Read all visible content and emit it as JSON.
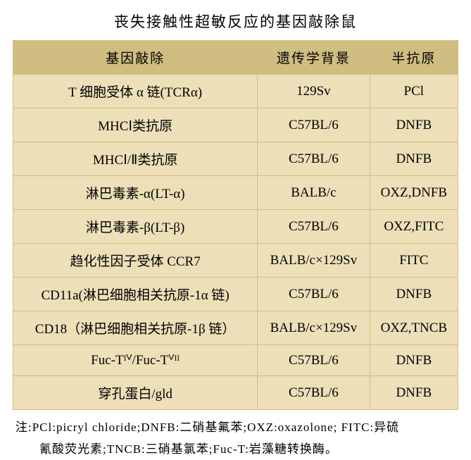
{
  "title": "丧失接触性超敏反应的基因敲除鼠",
  "table": {
    "headers": [
      "基因敲除",
      "遗传学背景",
      "半抗原"
    ],
    "rows": [
      [
        "T 细胞受体 α 链(TCRα)",
        "129Sv",
        "PCl"
      ],
      [
        "MHCⅠ类抗原",
        "C57BL/6",
        "DNFB"
      ],
      [
        "MHCⅠ/Ⅱ类抗原",
        "C57BL/6",
        "DNFB"
      ],
      [
        "淋巴毒素-α(LT-α)",
        "BALB/c",
        "OXZ,DNFB"
      ],
      [
        "淋巴毒素-β(LT-β)",
        "C57BL/6",
        "OXZ,FITC"
      ],
      [
        "趋化性因子受体 CCR7",
        "BALB/c×129Sv",
        "FITC"
      ],
      [
        "CD11a(淋巴细胞相关抗原-1α 链)",
        "C57BL/6",
        "DNFB"
      ],
      [
        "CD18（淋巴细胞相关抗原-1β 链）",
        "BALB/c×129Sv",
        "OXZ,TNCB"
      ],
      [
        "Fuc-Tᴵⱽ/Fuc-Tⱽᴵᴵ",
        "C57BL/6",
        "DNFB"
      ],
      [
        "穿孔蛋白/gld",
        "C57BL/6",
        "DNFB"
      ]
    ]
  },
  "footnote_line1": "注:PCl:picryl chloride;DNFB:二硝基氟苯;OXZ:oxazolone; FITC:异硫",
  "footnote_line2": "氰酸荧光素;TNCB:三硝基氯苯;Fuc-T:岩藻糖转换酶。",
  "styling": {
    "header_bg": "#cfbd81",
    "cell_bg": "#ede0b9",
    "border_color": "#cfbd81",
    "title_fontsize": 21,
    "cell_fontsize": 19,
    "footnote_fontsize": 17
  }
}
